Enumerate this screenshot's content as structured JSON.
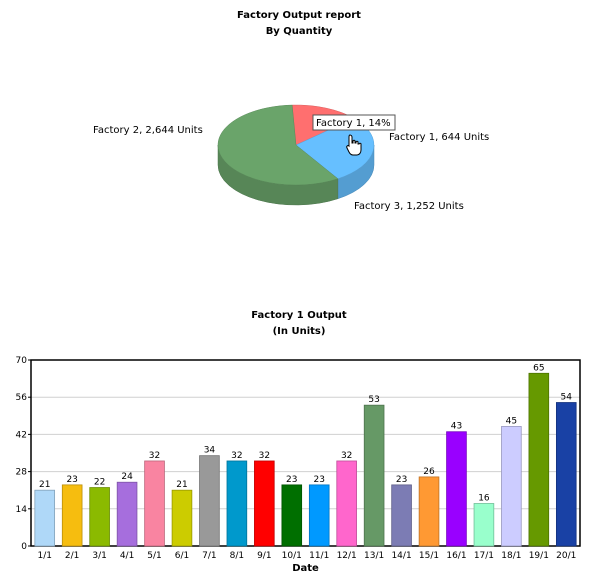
{
  "chart_data": [
    {
      "type": "pie",
      "title": "Factory Output report",
      "subtitle": "By Quantity",
      "slices": [
        {
          "name": "Factory 1",
          "label": "Factory 1, 644 Units",
          "value": 644,
          "color": "#FF6F6F"
        },
        {
          "name": "Factory 2",
          "label": "Factory 2, 2,644 Units",
          "value": 2644,
          "color": "#6AA46A"
        },
        {
          "name": "Factory 3",
          "label": "Factory 3, 1,252 Units",
          "value": 1252,
          "color": "#66BFFF"
        }
      ],
      "tooltip": "Factory 1, 14%"
    },
    {
      "type": "bar",
      "title": "Factory 1 Output",
      "subtitle": "(In Units)",
      "xlabel": "Date",
      "ylabel": "",
      "ylim": [
        0,
        70
      ],
      "yticks": [
        "0",
        "14",
        "28",
        "42",
        "56",
        "70"
      ],
      "categories": [
        "1/1",
        "2/1",
        "3/1",
        "4/1",
        "5/1",
        "6/1",
        "7/1",
        "8/1",
        "9/1",
        "10/1",
        "11/1",
        "12/1",
        "13/1",
        "14/1",
        "15/1",
        "16/1",
        "17/1",
        "18/1",
        "19/1",
        "20/1"
      ],
      "values": [
        21,
        23,
        22,
        24,
        32,
        21,
        34,
        32,
        32,
        23,
        23,
        32,
        53,
        23,
        26,
        43,
        16,
        45,
        65,
        54
      ],
      "colors": [
        "#AFD8F8",
        "#F6BD0F",
        "#8BBA00",
        "#A66EDD",
        "#F984A1",
        "#CCCC00",
        "#999999",
        "#0099CC",
        "#FF0000",
        "#006F00",
        "#0099FF",
        "#FF66CC",
        "#669966",
        "#7C7CB4",
        "#FF9933",
        "#9900FF",
        "#99FFCC",
        "#CCCCFF",
        "#669900",
        "#1941A5"
      ],
      "grid": true
    }
  ]
}
